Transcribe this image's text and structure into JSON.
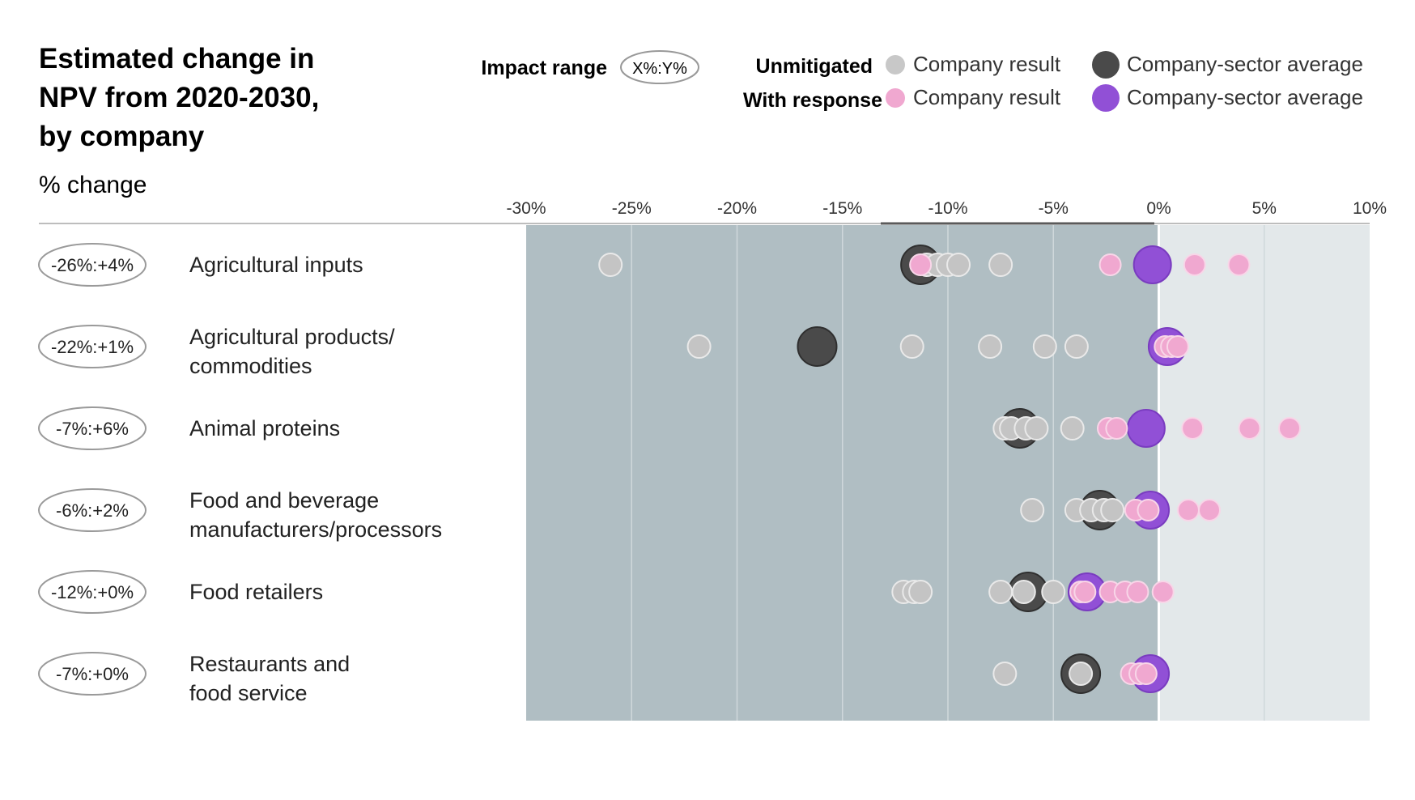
{
  "chart_data": {
    "type": "scatter",
    "title_lines": [
      "Estimated change in",
      "NPV from 2020-2030,",
      "by company"
    ],
    "subtitle": "% change",
    "legend": {
      "impact_range_label": "Impact range",
      "impact_range_example": "X%:Y%",
      "unmitigated_label": "Unmitigated",
      "with_response_label": "With response",
      "company_result_label": "Company result",
      "sector_average_label": "Company-sector average"
    },
    "x_axis": {
      "min": -30,
      "max": 10,
      "ticks": [
        -30,
        -25,
        -20,
        -15,
        -10,
        -5,
        0,
        5,
        10
      ],
      "tick_labels": [
        "-30%",
        "-25%",
        "-20%",
        "-15%",
        "-10%",
        "-5%",
        "0%",
        "5%",
        "10%"
      ]
    },
    "categories": [
      {
        "label_lines": [
          "Agricultural  inputs"
        ],
        "impact_range": "-26%:+4%",
        "unmitigated": [
          -26,
          -11,
          -10.5,
          -10,
          -9.5,
          -7.5
        ],
        "unmitigated_avg": -11.3,
        "with_response": [
          -11.3,
          -2.3,
          1.7,
          3.8
        ],
        "with_response_avg": -0.3
      },
      {
        "label_lines": [
          "Agricultural  products/",
          "commodities"
        ],
        "impact_range": "-22%:+1%",
        "unmitigated": [
          -21.8,
          -11.7,
          -8,
          -5.4,
          -3.9
        ],
        "unmitigated_avg": -16.2,
        "with_response": [
          0.3,
          0.6,
          0.9
        ],
        "with_response_avg": 0.4
      },
      {
        "label_lines": [
          "Animal proteins"
        ],
        "impact_range": "-7%:+6%",
        "unmitigated": [
          -7.3,
          -7,
          -6.3,
          -5.8,
          -4.1
        ],
        "unmitigated_avg": -6.6,
        "with_response": [
          -2.4,
          -2,
          1.6,
          4.3,
          6.2
        ],
        "with_response_avg": -0.6
      },
      {
        "label_lines": [
          "Food and beverage",
          "manufacturers/processors"
        ],
        "impact_range": "-6%:+2%",
        "unmitigated": [
          -6,
          -3.9,
          -3.2,
          -2.6,
          -2.2
        ],
        "unmitigated_avg": -2.8,
        "with_response": [
          -1.1,
          -0.5,
          1.4,
          2.4
        ],
        "with_response_avg": -0.4
      },
      {
        "label_lines": [
          "Food retailers"
        ],
        "impact_range": "-12%:+0%",
        "unmitigated": [
          -12.1,
          -11.6,
          -11.3,
          -7.5,
          -6.4,
          -5
        ],
        "unmitigated_avg": -6.2,
        "with_response": [
          -3.7,
          -3.5,
          -2.3,
          -1.6,
          -1,
          0.2
        ],
        "with_response_avg": -3.4
      },
      {
        "label_lines": [
          "Restaurants  and",
          "food service"
        ],
        "impact_range": "-7%:+0%",
        "unmitigated": [
          -7.3,
          -3.7
        ],
        "unmitigated_avg": -3.7,
        "with_response": [
          -1.3,
          -0.9,
          -0.6
        ],
        "with_response_avg": -0.4
      }
    ]
  }
}
